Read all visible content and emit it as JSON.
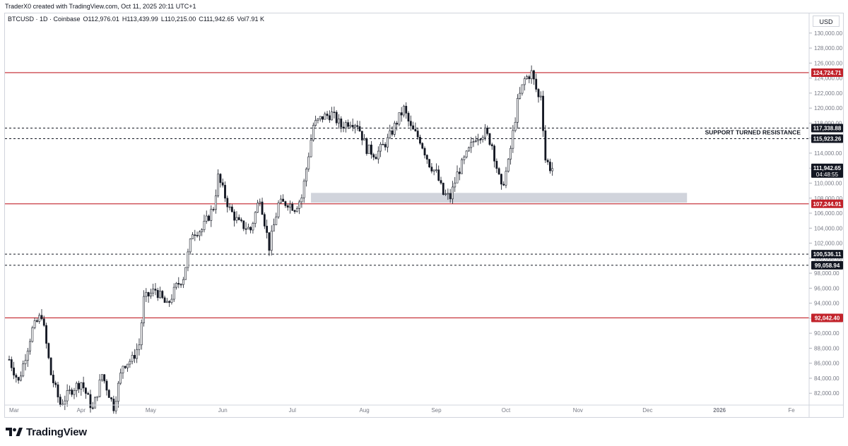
{
  "header": {
    "credit": "TraderX0 created with TradingView.com, Oct 11, 2025 20:11 UTC+1",
    "symbol": "BTCUSD · 1D · Coinbase",
    "open": "O112,976.01",
    "high": "H113,439.99",
    "low": "L110,215.00",
    "close": "C111,942.65",
    "volume": "Vol7.91 K"
  },
  "currency_button": "USD",
  "brand": {
    "name": "TradingView",
    "logo_icon": "tradingview-logo-icon"
  },
  "colors": {
    "resistance": "#c2232b",
    "dashed": "#131722",
    "zone": "#d1d4dc",
    "candle": "#131722",
    "axis_text": "#787b86"
  },
  "chart_data": {
    "type": "candlestick",
    "title": "",
    "ylim": [
      80000,
      132000
    ],
    "y_ticks": [
      82000,
      84000,
      86000,
      88000,
      90000,
      92000,
      94000,
      96000,
      98000,
      100000,
      102000,
      104000,
      106000,
      108000,
      110000,
      112000,
      114000,
      116000,
      118000,
      120000,
      122000,
      124000,
      126000,
      128000,
      130000
    ],
    "y_tick_labels": [
      "82,000.00",
      "84,000.00",
      "86,000.00",
      "88,000.00",
      "90,000.00",
      "92,000.00",
      "94,000.00",
      "96,000.00",
      "98,000.00",
      "100,000.00",
      "102,000.00",
      "104,000.00",
      "106,000.00",
      "108,000.00",
      "110,000.00",
      "112,000.00",
      "114,000.00",
      "116,000.00",
      "118,000.00",
      "120,000.00",
      "122,000.00",
      "124,000.00",
      "126,000.00",
      "128,000.00",
      "130,000.00"
    ],
    "x_ticks": [
      {
        "label": "Mar",
        "day": 0
      },
      {
        "label": "Apr",
        "day": 31
      },
      {
        "label": "May",
        "day": 61
      },
      {
        "label": "Jun",
        "day": 92
      },
      {
        "label": "Jul",
        "day": 122
      },
      {
        "label": "Aug",
        "day": 153
      },
      {
        "label": "Sep",
        "day": 184
      },
      {
        "label": "Oct",
        "day": 214
      },
      {
        "label": "Nov",
        "day": 245
      },
      {
        "label": "Dec",
        "day": 275
      },
      {
        "label": "2026",
        "day": 306
      },
      {
        "label": "Fe",
        "day": 337
      }
    ],
    "x_start_date": "2025-03-01",
    "horizontal_levels": [
      {
        "value": 124724.71,
        "label": "124,724.71",
        "style": "solid",
        "color": "#c2232b"
      },
      {
        "value": 117338.88,
        "label": "117,338.88",
        "style": "dashed",
        "color": "#131722"
      },
      {
        "value": 115923.26,
        "label": "115,923.26",
        "style": "dashed",
        "color": "#131722"
      },
      {
        "value": 107244.91,
        "label": "107,244.91",
        "style": "solid",
        "color": "#c2232b"
      },
      {
        "value": 100536.11,
        "label": "100,536.11",
        "style": "dashed",
        "color": "#131722"
      },
      {
        "value": 99058.94,
        "label": "99,058.94",
        "style": "dashed",
        "color": "#131722"
      },
      {
        "value": 92042.4,
        "label": "92,042.40",
        "style": "solid",
        "color": "#c2232b"
      }
    ],
    "last_price": {
      "value": 111942.65,
      "label": "111,942.65",
      "countdown": "04:48:55"
    },
    "annotations": [
      {
        "text": "SUPPORT TURNED RESISTANCE",
        "anchor_level": 117338.88
      }
    ],
    "zone": {
      "from_day": 130,
      "to_day": 292,
      "low": 107400,
      "high": 108700
    },
    "anchors": [
      [
        0,
        86500
      ],
      [
        4,
        83500
      ],
      [
        10,
        90500
      ],
      [
        14,
        92500
      ],
      [
        18,
        84500
      ],
      [
        22,
        80500
      ],
      [
        27,
        82500
      ],
      [
        31,
        83500
      ],
      [
        36,
        79800
      ],
      [
        40,
        84500
      ],
      [
        45,
        80200
      ],
      [
        49,
        85800
      ],
      [
        53,
        86500
      ],
      [
        56,
        88500
      ],
      [
        58,
        94500
      ],
      [
        63,
        95800
      ],
      [
        68,
        93600
      ],
      [
        72,
        96200
      ],
      [
        75,
        97500
      ],
      [
        79,
        103500
      ],
      [
        83,
        103800
      ],
      [
        88,
        106800
      ],
      [
        90,
        110800
      ],
      [
        95,
        106500
      ],
      [
        99,
        104600
      ],
      [
        104,
        103800
      ],
      [
        108,
        108200
      ],
      [
        112,
        101500
      ],
      [
        116,
        107200
      ],
      [
        120,
        107400
      ],
      [
        123,
        106700
      ],
      [
        126,
        108100
      ],
      [
        131,
        117700
      ],
      [
        135,
        118800
      ],
      [
        139,
        119200
      ],
      [
        143,
        117600
      ],
      [
        147,
        118300
      ],
      [
        150,
        117900
      ],
      [
        154,
        114600
      ],
      [
        158,
        113800
      ],
      [
        163,
        115700
      ],
      [
        167,
        118200
      ],
      [
        170,
        119900
      ],
      [
        173,
        117300
      ],
      [
        177,
        115800
      ],
      [
        181,
        112600
      ],
      [
        184,
        111300
      ],
      [
        187,
        108500
      ],
      [
        190,
        108100
      ],
      [
        193,
        111200
      ],
      [
        197,
        113700
      ],
      [
        201,
        116200
      ],
      [
        205,
        116800
      ],
      [
        208,
        115100
      ],
      [
        212,
        109200
      ],
      [
        215,
        112600
      ],
      [
        219,
        120700
      ],
      [
        222,
        123800
      ],
      [
        225,
        124700
      ],
      [
        228,
        121400
      ],
      [
        229,
        121900
      ],
      [
        231,
        113200
      ],
      [
        233,
        112100
      ],
      [
        234,
        111942.65
      ]
    ],
    "series_note": "BTCUSD 1D candles"
  }
}
